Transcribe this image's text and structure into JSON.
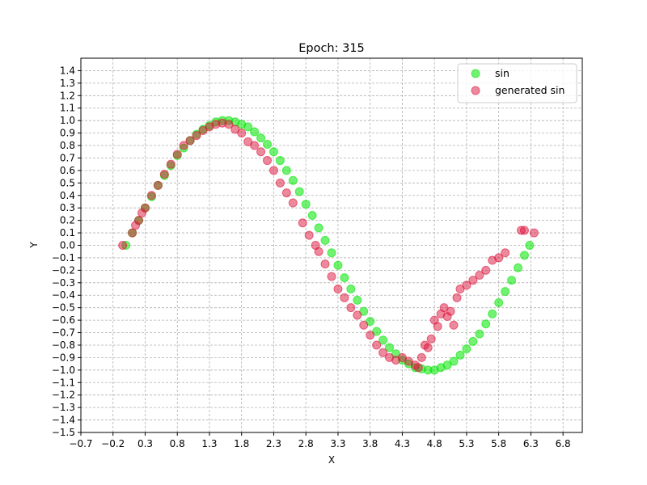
{
  "chart_data": {
    "type": "scatter",
    "title": "Epoch: 315",
    "xlabel": "X",
    "ylabel": "Y",
    "xlim": [
      -0.7,
      7.1
    ],
    "ylim": [
      -1.5,
      1.5
    ],
    "xticks": [
      -0.7,
      -0.2,
      0.3,
      0.8,
      1.3,
      1.8,
      2.3,
      2.8,
      3.3,
      3.8,
      4.3,
      4.8,
      5.3,
      5.8,
      6.3,
      6.8
    ],
    "xtick_labels": [
      "−0.7",
      "−0.2",
      "0.3",
      "0.8",
      "1.3",
      "1.8",
      "2.3",
      "2.8",
      "3.3",
      "3.8",
      "4.3",
      "4.8",
      "5.3",
      "5.8",
      "6.3",
      "6.8"
    ],
    "yticks": [
      -1.5,
      -1.4,
      -1.3,
      -1.2,
      -1.1,
      -1.0,
      -0.9,
      -0.8,
      -0.7,
      -0.6,
      -0.5,
      -0.4,
      -0.3,
      -0.2,
      -0.1,
      0.0,
      0.1,
      0.2,
      0.3,
      0.4,
      0.5,
      0.6,
      0.7,
      0.8,
      0.9,
      1.0,
      1.1,
      1.2,
      1.3,
      1.4
    ],
    "ytick_labels": [
      "−1.5",
      "−1.4",
      "−1.3",
      "−1.2",
      "−1.1",
      "−1.0",
      "−0.9",
      "−0.8",
      "−0.7",
      "−0.6",
      "−0.5",
      "−0.4",
      "−0.3",
      "−0.2",
      "−0.1",
      "0.0",
      "0.1",
      "0.2",
      "0.3",
      "0.4",
      "0.5",
      "0.6",
      "0.7",
      "0.8",
      "0.9",
      "1.0",
      "1.1",
      "1.2",
      "1.3",
      "1.4"
    ],
    "grid": true,
    "legend_position": "top-right",
    "series": [
      {
        "name": "sin",
        "color": "#00e600",
        "points": [
          [
            0.0,
            0.0
          ],
          [
            0.1,
            0.1
          ],
          [
            0.2,
            0.2
          ],
          [
            0.3,
            0.3
          ],
          [
            0.4,
            0.39
          ],
          [
            0.5,
            0.48
          ],
          [
            0.6,
            0.56
          ],
          [
            0.7,
            0.64
          ],
          [
            0.8,
            0.72
          ],
          [
            0.9,
            0.78
          ],
          [
            1.0,
            0.84
          ],
          [
            1.1,
            0.89
          ],
          [
            1.2,
            0.93
          ],
          [
            1.3,
            0.96
          ],
          [
            1.4,
            0.99
          ],
          [
            1.5,
            1.0
          ],
          [
            1.6,
            1.0
          ],
          [
            1.7,
            0.99
          ],
          [
            1.8,
            0.97
          ],
          [
            1.9,
            0.95
          ],
          [
            2.0,
            0.91
          ],
          [
            2.1,
            0.86
          ],
          [
            2.2,
            0.81
          ],
          [
            2.3,
            0.75
          ],
          [
            2.4,
            0.68
          ],
          [
            2.5,
            0.6
          ],
          [
            2.6,
            0.52
          ],
          [
            2.7,
            0.43
          ],
          [
            2.8,
            0.33
          ],
          [
            2.9,
            0.24
          ],
          [
            3.0,
            0.14
          ],
          [
            3.1,
            0.04
          ],
          [
            3.2,
            -0.06
          ],
          [
            3.3,
            -0.16
          ],
          [
            3.4,
            -0.26
          ],
          [
            3.5,
            -0.35
          ],
          [
            3.6,
            -0.44
          ],
          [
            3.7,
            -0.53
          ],
          [
            3.8,
            -0.61
          ],
          [
            3.9,
            -0.69
          ],
          [
            4.0,
            -0.76
          ],
          [
            4.1,
            -0.82
          ],
          [
            4.2,
            -0.87
          ],
          [
            4.3,
            -0.92
          ],
          [
            4.4,
            -0.95
          ],
          [
            4.5,
            -0.98
          ],
          [
            4.6,
            -0.99
          ],
          [
            4.7,
            -1.0
          ],
          [
            4.8,
            -1.0
          ],
          [
            4.9,
            -0.98
          ],
          [
            5.0,
            -0.96
          ],
          [
            5.1,
            -0.93
          ],
          [
            5.2,
            -0.88
          ],
          [
            5.3,
            -0.83
          ],
          [
            5.4,
            -0.77
          ],
          [
            5.5,
            -0.71
          ],
          [
            5.6,
            -0.63
          ],
          [
            5.7,
            -0.55
          ],
          [
            5.8,
            -0.46
          ],
          [
            5.9,
            -0.37
          ],
          [
            6.0,
            -0.28
          ],
          [
            6.1,
            -0.18
          ],
          [
            6.2,
            -0.08
          ],
          [
            6.28,
            0.0
          ]
        ]
      },
      {
        "name": "generated sin",
        "color": "#dc143c",
        "points": [
          [
            -0.05,
            0.0
          ],
          [
            0.1,
            0.1
          ],
          [
            0.15,
            0.16
          ],
          [
            0.2,
            0.2
          ],
          [
            0.25,
            0.26
          ],
          [
            0.3,
            0.3
          ],
          [
            0.4,
            0.4
          ],
          [
            0.5,
            0.48
          ],
          [
            0.6,
            0.57
          ],
          [
            0.7,
            0.65
          ],
          [
            0.8,
            0.73
          ],
          [
            0.9,
            0.8
          ],
          [
            1.0,
            0.84
          ],
          [
            1.1,
            0.88
          ],
          [
            1.2,
            0.92
          ],
          [
            1.3,
            0.95
          ],
          [
            1.4,
            0.97
          ],
          [
            1.5,
            0.98
          ],
          [
            1.6,
            0.97
          ],
          [
            1.7,
            0.93
          ],
          [
            1.8,
            0.9
          ],
          [
            1.9,
            0.83
          ],
          [
            2.0,
            0.8
          ],
          [
            2.1,
            0.75
          ],
          [
            2.2,
            0.68
          ],
          [
            2.3,
            0.6
          ],
          [
            2.4,
            0.5
          ],
          [
            2.5,
            0.42
          ],
          [
            2.6,
            0.34
          ],
          [
            2.75,
            0.18
          ],
          [
            2.85,
            0.08
          ],
          [
            2.95,
            0.0
          ],
          [
            3.0,
            -0.05
          ],
          [
            3.1,
            -0.15
          ],
          [
            3.2,
            -0.25
          ],
          [
            3.3,
            -0.35
          ],
          [
            3.4,
            -0.42
          ],
          [
            3.5,
            -0.5
          ],
          [
            3.6,
            -0.56
          ],
          [
            3.7,
            -0.64
          ],
          [
            3.8,
            -0.72
          ],
          [
            3.9,
            -0.8
          ],
          [
            4.0,
            -0.86
          ],
          [
            4.1,
            -0.9
          ],
          [
            4.2,
            -0.92
          ],
          [
            4.3,
            -0.9
          ],
          [
            4.4,
            -0.93
          ],
          [
            4.5,
            -0.96
          ],
          [
            4.55,
            -0.98
          ],
          [
            4.6,
            -0.9
          ],
          [
            4.65,
            -0.8
          ],
          [
            4.7,
            -0.82
          ],
          [
            4.75,
            -0.75
          ],
          [
            4.8,
            -0.6
          ],
          [
            4.85,
            -0.65
          ],
          [
            4.9,
            -0.55
          ],
          [
            4.95,
            -0.5
          ],
          [
            5.0,
            -0.57
          ],
          [
            5.05,
            -0.53
          ],
          [
            5.1,
            -0.64
          ],
          [
            5.15,
            -0.42
          ],
          [
            5.2,
            -0.35
          ],
          [
            5.3,
            -0.32
          ],
          [
            5.4,
            -0.28
          ],
          [
            5.5,
            -0.24
          ],
          [
            5.6,
            -0.2
          ],
          [
            5.7,
            -0.12
          ],
          [
            5.8,
            -0.1
          ],
          [
            5.9,
            -0.06
          ],
          [
            6.15,
            0.12
          ],
          [
            6.2,
            0.12
          ],
          [
            6.35,
            0.1
          ]
        ]
      }
    ]
  }
}
